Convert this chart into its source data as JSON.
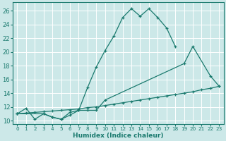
{
  "xlabel": "Humidex (Indice chaleur)",
  "xlim": [
    -0.5,
    23.5
  ],
  "ylim": [
    9.5,
    27.2
  ],
  "xticks": [
    0,
    1,
    2,
    3,
    4,
    5,
    6,
    7,
    8,
    9,
    10,
    11,
    12,
    13,
    14,
    15,
    16,
    17,
    18,
    19,
    20,
    21,
    22,
    23
  ],
  "yticks": [
    10,
    12,
    14,
    16,
    18,
    20,
    22,
    24,
    26
  ],
  "bg_color": "#cce8e8",
  "line_color": "#1a7a6e",
  "grid_color": "#ffffff",
  "line1_x": [
    0,
    1,
    2,
    3,
    4,
    5,
    6,
    7,
    8,
    9,
    10,
    11,
    12,
    13,
    14,
    15,
    16,
    17,
    18
  ],
  "line1_y": [
    11,
    11.8,
    10.2,
    11.0,
    10.5,
    10.2,
    10.8,
    11.5,
    14.8,
    17.8,
    20.2,
    22.3,
    25.0,
    26.3,
    25.2,
    26.3,
    25.0,
    23.5,
    20.8
  ],
  "line2_x": [
    0,
    3,
    4,
    5,
    6,
    7,
    8,
    9,
    10,
    19,
    20,
    22,
    23
  ],
  "line2_y": [
    11,
    11.0,
    10.5,
    10.2,
    11.2,
    11.5,
    11.5,
    11.5,
    13.0,
    18.3,
    20.8,
    16.5,
    15.0
  ],
  "line3_x": [
    0,
    1,
    2,
    3,
    4,
    5,
    6,
    7,
    8,
    9,
    10,
    11,
    12,
    13,
    14,
    15,
    16,
    17,
    18,
    19,
    20,
    21,
    22,
    23
  ],
  "line3_y": [
    11.0,
    11.1,
    11.2,
    11.3,
    11.4,
    11.5,
    11.6,
    11.7,
    11.9,
    12.0,
    12.2,
    12.4,
    12.6,
    12.8,
    13.0,
    13.2,
    13.4,
    13.6,
    13.8,
    14.0,
    14.2,
    14.5,
    14.7,
    15.0
  ]
}
